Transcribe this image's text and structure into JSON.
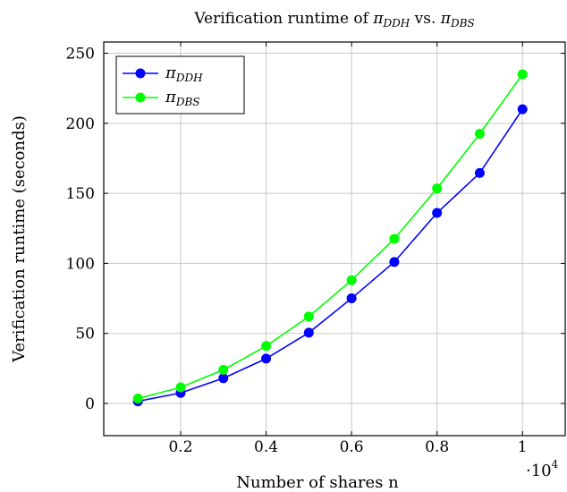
{
  "chart_data": {
    "type": "line",
    "title": "Verification runtime of π_DDH vs. π_DBS",
    "title_parts": {
      "prefix": "Verification runtime of ",
      "sym1": "π",
      "sub1": "DDH",
      "mid": " vs. ",
      "sym2": "π",
      "sub2": "DBS"
    },
    "xlabel": "Number of shares n",
    "ylabel": "Verification runtime (seconds)",
    "x_multiplier_label": {
      "base": "·10",
      "exp": "4"
    },
    "xlim": [
      0.02,
      1.1
    ],
    "ylim": [
      -23,
      258
    ],
    "x_ticks": [
      0.2,
      0.4,
      0.6,
      0.8,
      1
    ],
    "x_tick_labels": [
      "0.2",
      "0.4",
      "0.6",
      "0.8",
      "1"
    ],
    "y_ticks": [
      0,
      50,
      100,
      150,
      200,
      250
    ],
    "y_tick_labels": [
      "0",
      "50",
      "100",
      "150",
      "200",
      "250"
    ],
    "grid": true,
    "legend_position": "top-left",
    "x": [
      0.1,
      0.2,
      0.3,
      0.4,
      0.5,
      0.6,
      0.7,
      0.8,
      0.9,
      1.0
    ],
    "series": [
      {
        "name": "π_DDH",
        "legend_symbol": "π",
        "legend_sub": "DDH",
        "color": "#0000ff",
        "values": [
          1.5,
          7.5,
          18,
          32,
          50.5,
          75,
          101,
          136,
          164.5,
          210
        ]
      },
      {
        "name": "π_DBS",
        "legend_symbol": "π",
        "legend_sub": "DBS",
        "color": "#00ff00",
        "values": [
          3.5,
          11.5,
          24,
          41,
          62,
          88,
          117.5,
          153.5,
          192.5,
          235
        ]
      }
    ]
  }
}
